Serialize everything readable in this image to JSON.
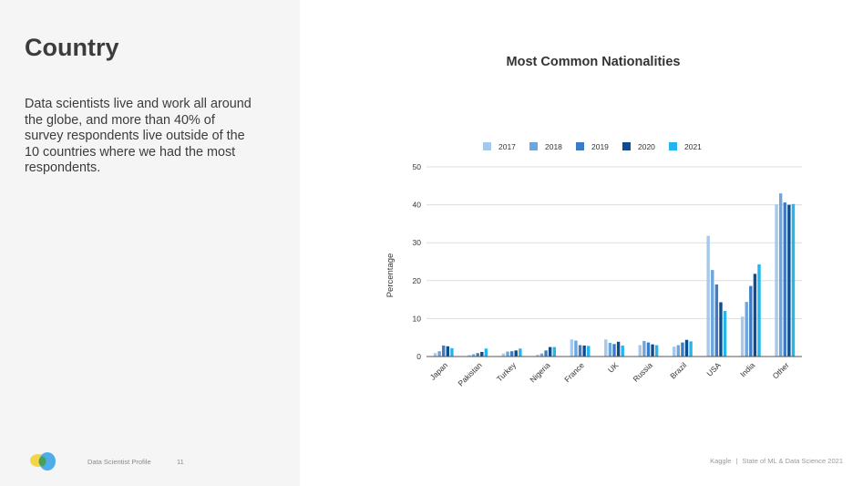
{
  "sidebar": {
    "heading": "Country",
    "body": "Data scientists live and work all around the globe, and more than 40% of survey respondents live outside of the 10 countries where we had the most respondents.",
    "footer_label": "Data Scientist Profile",
    "page_number": "11"
  },
  "footer": {
    "brand": "Kaggle",
    "separator": "|",
    "report": "State of ML & Data Science 2021"
  },
  "chart_data": {
    "type": "bar",
    "title": "Most Common Nationalities",
    "xlabel": "",
    "ylabel": "Percentage",
    "ylim": [
      0,
      50
    ],
    "yticks": [
      0,
      10,
      20,
      30,
      40,
      50
    ],
    "grid": true,
    "legend_position": "top",
    "categories": [
      "Japan",
      "Pakistan",
      "Turkey",
      "Nigeria",
      "France",
      "UK",
      "Russia",
      "Brazil",
      "USA",
      "India",
      "Other"
    ],
    "series": [
      {
        "name": "2017",
        "color": "#a6c8ea",
        "values": [
          0.9,
          0.4,
          0.8,
          0.5,
          4.5,
          4.5,
          3.0,
          2.6,
          31.8,
          10.5,
          40.1
        ]
      },
      {
        "name": "2018",
        "color": "#6ea5db",
        "values": [
          1.4,
          0.6,
          1.3,
          0.8,
          4.2,
          3.6,
          4.1,
          3.0,
          22.8,
          14.4,
          43.0
        ]
      },
      {
        "name": "2019",
        "color": "#3d7cc4",
        "values": [
          2.9,
          0.9,
          1.4,
          1.6,
          3.0,
          3.3,
          3.7,
          3.7,
          19.0,
          18.6,
          40.6
        ]
      },
      {
        "name": "2020",
        "color": "#0e4c8f",
        "values": [
          2.7,
          1.2,
          1.6,
          2.5,
          2.9,
          3.9,
          3.2,
          4.4,
          14.3,
          21.8,
          40.0
        ]
      },
      {
        "name": "2021",
        "color": "#23b5ec",
        "values": [
          2.2,
          2.1,
          2.1,
          2.5,
          2.8,
          2.9,
          3.0,
          4.0,
          12.0,
          24.3,
          40.2
        ]
      }
    ]
  }
}
